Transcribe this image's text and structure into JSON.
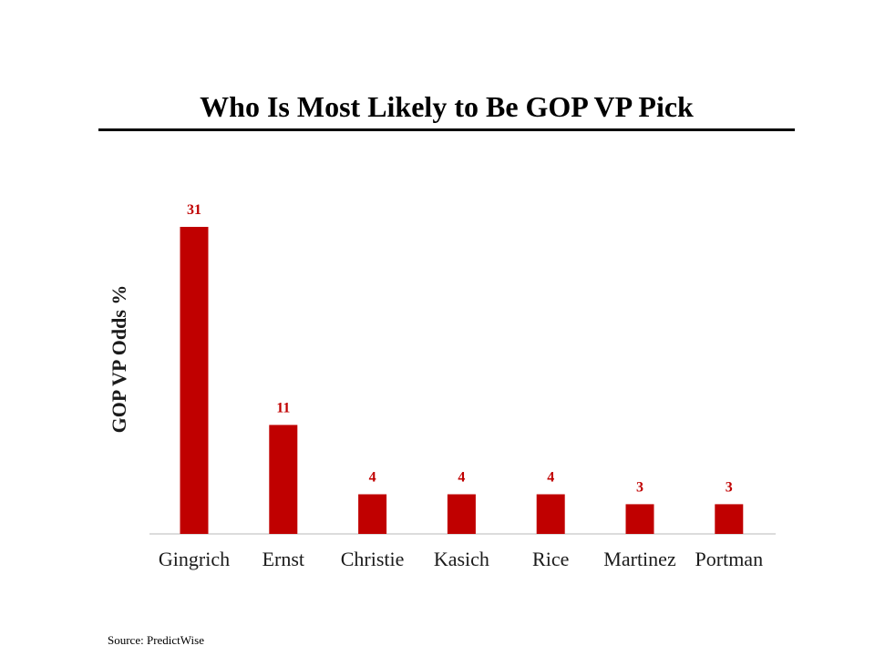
{
  "chart_data": {
    "type": "bar",
    "title": "Who Is Most Likely to Be GOP VP Pick",
    "ylabel": "GOP VP Odds %",
    "xlabel": "",
    "categories": [
      "Gingrich",
      "Ernst",
      "Christie",
      "Kasich",
      "Rice",
      "Martinez",
      "Portman"
    ],
    "values": [
      31,
      11,
      4,
      4,
      4,
      3,
      3
    ],
    "ylim": [
      0,
      31
    ],
    "grid": false,
    "legend": "none",
    "bar_color": "#c00000",
    "label_color": "#c00000"
  },
  "source": "Source: PredictWise"
}
